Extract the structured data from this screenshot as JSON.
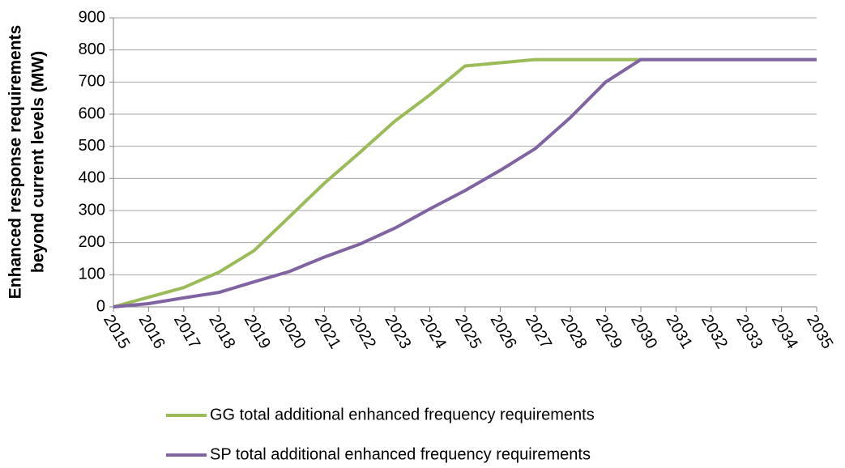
{
  "chart_data": {
    "type": "line",
    "ylabel": [
      "Enhanced response requirements",
      "beyond current levels (MW)"
    ],
    "x": [
      2015,
      2016,
      2017,
      2018,
      2019,
      2020,
      2021,
      2022,
      2023,
      2024,
      2025,
      2026,
      2027,
      2028,
      2029,
      2030,
      2031,
      2032,
      2033,
      2034,
      2035
    ],
    "xlim": [
      2015,
      2035
    ],
    "xticks": [
      2015,
      2016,
      2017,
      2018,
      2019,
      2020,
      2021,
      2022,
      2023,
      2024,
      2025,
      2026,
      2027,
      2028,
      2029,
      2030,
      2031,
      2032,
      2033,
      2034,
      2035
    ],
    "ylim": [
      0,
      900
    ],
    "yticks": [
      0,
      100,
      200,
      300,
      400,
      500,
      600,
      700,
      800,
      900
    ],
    "grid": true,
    "legend": "bottom",
    "series": [
      {
        "name": "GG total additional enhanced frequency requirements",
        "color": "#9bbb59",
        "values": [
          0,
          30,
          60,
          108,
          175,
          280,
          385,
          480,
          578,
          660,
          750,
          760,
          770,
          770,
          770,
          770,
          770,
          770,
          770,
          770,
          770
        ]
      },
      {
        "name": "SP total additional enhanced frequency requirements",
        "color": "#8064a2",
        "values": [
          0,
          10,
          28,
          45,
          78,
          110,
          155,
          195,
          245,
          305,
          362,
          425,
          493,
          590,
          700,
          770,
          770,
          770,
          770,
          770,
          770
        ]
      }
    ]
  }
}
